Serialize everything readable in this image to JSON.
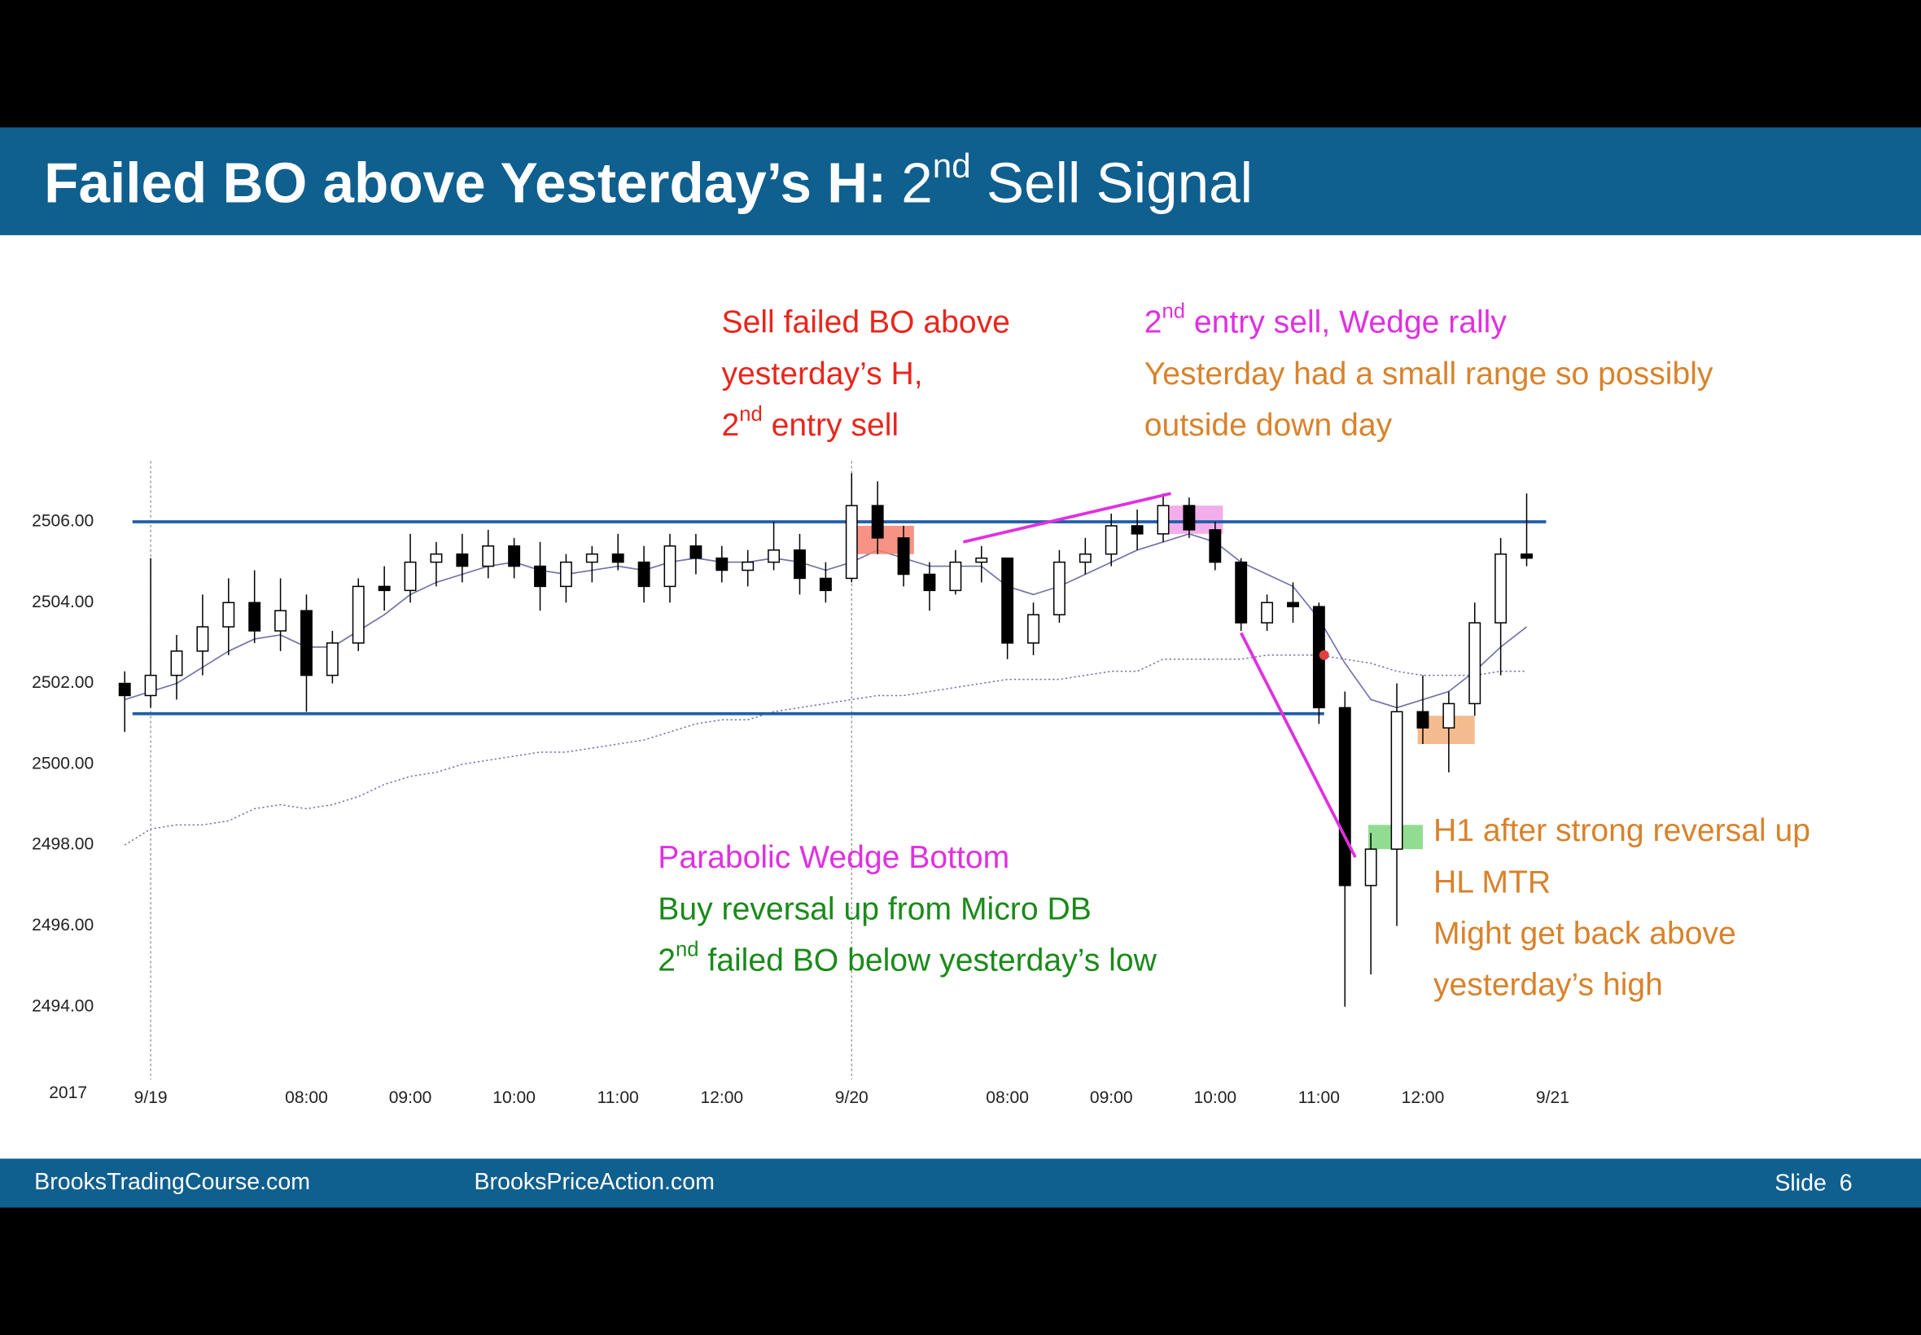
{
  "header": {
    "title": {
      "main": "Failed BO above Yesterday’s H:",
      "num": "2",
      "sup": "nd",
      "rest": " Sell Signal"
    }
  },
  "chart_data": {
    "type": "candlestick",
    "year_label": "2017",
    "x": [
      -1,
      0,
      1,
      2,
      3,
      4,
      5,
      6,
      7,
      8,
      9,
      10,
      11,
      12,
      13,
      14,
      15,
      16,
      17,
      18,
      19,
      20,
      21,
      22,
      23,
      24,
      25,
      26,
      27,
      28,
      29,
      30,
      31,
      32,
      33,
      34,
      35,
      36,
      37,
      38,
      39,
      40,
      41,
      42,
      43,
      44,
      45,
      46,
      47,
      48,
      49,
      50,
      51,
      52,
      53
    ],
    "open": [
      2502,
      2501.7,
      2502.2,
      2502.8,
      2503.4,
      2504.0,
      2503.3,
      2503.8,
      2502.2,
      2503.0,
      2504.4,
      2504.3,
      2505.0,
      2505.2,
      2504.9,
      2505.4,
      2504.9,
      2504.4,
      2505.0,
      2505.2,
      2505.0,
      2504.4,
      2505.4,
      2505.1,
      2504.8,
      2505.0,
      2505.3,
      2504.6,
      2504.6,
      2506.4,
      2505.6,
      2504.7,
      2504.3,
      2505.0,
      2505.1,
      2503.0,
      2503.7,
      2505.0,
      2505.2,
      2505.9,
      2505.7,
      2506.4,
      2505.8,
      2505.0,
      2503.5,
      2504.0,
      2503.9,
      2501.4,
      2497.0,
      2497.9,
      2501.3,
      2500.9,
      2501.5,
      2503.5,
      2505.2
    ],
    "high": [
      2502.3,
      2505.1,
      2503.2,
      2504.2,
      2504.6,
      2504.8,
      2504.6,
      2504.2,
      2503.3,
      2504.6,
      2504.9,
      2505.7,
      2505.5,
      2505.7,
      2505.8,
      2505.6,
      2505.5,
      2505.2,
      2505.4,
      2505.7,
      2505.4,
      2505.7,
      2505.7,
      2505.4,
      2505.3,
      2506.0,
      2505.7,
      2505.0,
      2507.2,
      2507.0,
      2505.9,
      2505.0,
      2505.3,
      2505.4,
      2505.1,
      2504.0,
      2505.3,
      2505.6,
      2506.2,
      2506.3,
      2506.7,
      2506.6,
      2506.0,
      2505.1,
      2504.2,
      2504.5,
      2504.0,
      2501.8,
      2498.3,
      2502.0,
      2502.2,
      2501.8,
      2504.0,
      2505.6,
      2506.7
    ],
    "low": [
      2500.8,
      2501.4,
      2501.6,
      2502.2,
      2502.7,
      2503.0,
      2502.8,
      2501.3,
      2502.0,
      2502.8,
      2503.8,
      2504.0,
      2504.4,
      2504.5,
      2504.6,
      2504.6,
      2503.8,
      2504.0,
      2504.5,
      2504.8,
      2504.0,
      2504.0,
      2504.7,
      2504.5,
      2504.4,
      2504.8,
      2504.2,
      2504.0,
      2504.5,
      2505.2,
      2504.4,
      2503.8,
      2504.2,
      2504.5,
      2502.6,
      2502.7,
      2503.5,
      2504.7,
      2504.9,
      2505.3,
      2505.5,
      2505.6,
      2504.8,
      2503.3,
      2503.3,
      2503.5,
      2501.0,
      2494.0,
      2494.8,
      2496.0,
      2500.5,
      2499.8,
      2501.2,
      2502.2,
      2504.9
    ],
    "close": [
      2501.7,
      2502.2,
      2502.8,
      2503.4,
      2504.0,
      2503.3,
      2503.8,
      2502.2,
      2503.0,
      2504.4,
      2504.3,
      2505.0,
      2505.2,
      2504.9,
      2505.4,
      2504.9,
      2504.4,
      2505.0,
      2505.2,
      2505.0,
      2504.4,
      2505.4,
      2505.1,
      2504.8,
      2505.0,
      2505.3,
      2504.6,
      2504.3,
      2506.4,
      2505.6,
      2504.7,
      2504.3,
      2505.0,
      2505.1,
      2503.0,
      2503.7,
      2505.0,
      2505.2,
      2505.9,
      2505.7,
      2506.4,
      2505.8,
      2505.0,
      2503.5,
      2504.0,
      2503.9,
      2501.4,
      2497.0,
      2497.9,
      2501.3,
      2500.9,
      2501.5,
      2503.5,
      2505.2,
      2505.1
    ],
    "lines": [
      {
        "color": "#6f72a8",
        "style": "solid",
        "values": [
          2501.6,
          2501.8,
          2502.0,
          2502.4,
          2502.8,
          2503.1,
          2503.2,
          2502.9,
          2502.9,
          2503.3,
          2503.7,
          2504.2,
          2504.5,
          2504.7,
          2504.9,
          2505.0,
          2504.8,
          2504.7,
          2504.8,
          2504.9,
          2504.8,
          2505.0,
          2505.1,
          2505.0,
          2505.0,
          2505.1,
          2505.0,
          2504.8,
          2505.0,
          2505.3,
          2505.1,
          2504.9,
          2504.9,
          2504.9,
          2504.4,
          2504.2,
          2504.4,
          2504.7,
          2505.0,
          2505.3,
          2505.5,
          2505.7,
          2505.5,
          2505.0,
          2504.7,
          2504.4,
          2503.6,
          2502.5,
          2501.6,
          2501.4,
          2501.6,
          2501.8,
          2502.3,
          2502.9,
          2503.4
        ]
      },
      {
        "color": "#6f72a8",
        "style": "dotted",
        "values": [
          2498.0,
          2498.4,
          2498.5,
          2498.5,
          2498.6,
          2498.9,
          2499.0,
          2498.9,
          2499.0,
          2499.2,
          2499.5,
          2499.7,
          2499.8,
          2500.0,
          2500.1,
          2500.2,
          2500.3,
          2500.3,
          2500.4,
          2500.5,
          2500.6,
          2500.8,
          2501.0,
          2501.1,
          2501.1,
          2501.3,
          2501.4,
          2501.5,
          2501.6,
          2501.7,
          2501.7,
          2501.8,
          2501.9,
          2502.0,
          2502.1,
          2502.1,
          2502.1,
          2502.2,
          2502.3,
          2502.3,
          2502.6,
          2502.6,
          2502.6,
          2502.6,
          2502.7,
          2502.7,
          2502.7,
          2502.6,
          2502.5,
          2502.3,
          2502.2,
          2502.2,
          2502.2,
          2502.3,
          2502.3
        ]
      }
    ],
    "levels": [
      {
        "y": 2506.0,
        "x": [
          -0.7,
          53.75
        ],
        "color": "#1f5fa8"
      },
      {
        "y": 2501.25,
        "x": [
          -0.7,
          45.2
        ],
        "color": "#1f5fa8"
      }
    ],
    "trendlines": [
      {
        "x": [
          31.3,
          39.3
        ],
        "y": [
          2505.5,
          2506.7
        ],
        "color": "#e030e0"
      },
      {
        "x": [
          42.0,
          46.4
        ],
        "y": [
          2503.25,
          2497.7
        ],
        "color": "#e030e0"
      }
    ],
    "boxes": [
      {
        "x": [
          27.2,
          29.4
        ],
        "y": [
          2505.2,
          2505.9
        ],
        "color": "#f4806f"
      },
      {
        "x": [
          39.2,
          41.3
        ],
        "y": [
          2505.7,
          2506.4
        ],
        "color": "#f0a0e8"
      },
      {
        "x": [
          46.9,
          49.0
        ],
        "y": [
          2497.9,
          2498.5
        ],
        "color": "#7fd67f"
      },
      {
        "x": [
          48.8,
          51.0
        ],
        "y": [
          2500.5,
          2501.2
        ],
        "color": "#f2b07a"
      }
    ],
    "dots": [
      {
        "x": 45.2,
        "y": 2502.7,
        "color": "#e04040"
      }
    ],
    "vlines": [
      0,
      27
    ],
    "xlim": [
      -1.5,
      55
    ],
    "ylim": [
      2492.2,
      2507.5
    ],
    "xticks": [
      {
        "value": 0,
        "label": "9/19"
      },
      {
        "value": 6,
        "label": "08:00"
      },
      {
        "value": 10,
        "label": "09:00"
      },
      {
        "value": 14,
        "label": "10:00"
      },
      {
        "value": 18,
        "label": "11:00"
      },
      {
        "value": 22,
        "label": "12:00"
      },
      {
        "value": 27,
        "label": "9/20"
      },
      {
        "value": 33,
        "label": "08:00"
      },
      {
        "value": 37,
        "label": "09:00"
      },
      {
        "value": 41,
        "label": "10:00"
      },
      {
        "value": 45,
        "label": "11:00"
      },
      {
        "value": 49,
        "label": "12:00"
      },
      {
        "value": 54,
        "label": "9/21"
      }
    ],
    "yticks": [
      {
        "value": 2494,
        "label": "2494.00"
      },
      {
        "value": 2496,
        "label": "2496.00"
      },
      {
        "value": 2498,
        "label": "2498.00"
      },
      {
        "value": 2500,
        "label": "2500.00"
      },
      {
        "value": 2502,
        "label": "2502.00"
      },
      {
        "value": 2504,
        "label": "2504.00"
      },
      {
        "value": 2506,
        "label": "2506.00"
      }
    ],
    "grid": false
  },
  "annotations": [
    {
      "lines": [
        {
          "text": "Sell failed BO above",
          "color": "#e8261c"
        },
        {
          "text": "yesterday’s H,",
          "color": "#e8261c"
        },
        {
          "text": "2",
          "sup": "nd",
          "rest": " entry sell",
          "color": "#e8261c"
        }
      ]
    },
    {
      "lines": [
        {
          "text": "2",
          "sup": "nd",
          "rest": " entry sell, Wedge rally",
          "color": "#e030e0"
        },
        {
          "text": "Yesterday had a small range so possibly",
          "color": "#d9822b"
        },
        {
          "text": "outside down day",
          "color": "#d9822b"
        }
      ]
    },
    {
      "lines": [
        {
          "text": "Parabolic Wedge Bottom",
          "color": "#e030e0"
        },
        {
          "text": "Buy reversal up from Micro DB",
          "color": "#1a8a1a"
        },
        {
          "text": "2",
          "sup": "nd",
          "rest": " failed BO below yesterday’s low",
          "color": "#1a8a1a"
        }
      ]
    },
    {
      "lines": [
        {
          "text": "H1 after strong reversal up",
          "color": "#d9822b"
        },
        {
          "text": "HL MTR",
          "color": "#d9822b"
        },
        {
          "text": "Might get back above",
          "color": "#d9822b"
        },
        {
          "text": "yesterday’s high",
          "color": "#d9822b"
        }
      ]
    }
  ],
  "footer": {
    "left": "BrooksTradingCourse.com",
    "center": "BrooksPriceAction.com",
    "slide": "Slide  6"
  }
}
